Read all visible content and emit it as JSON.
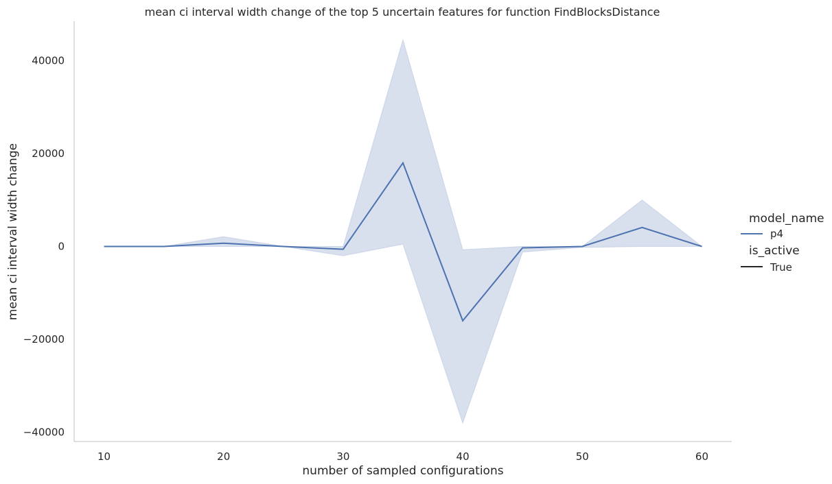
{
  "chart_data": {
    "type": "line",
    "title": "mean ci interval width change of the top 5 uncertain features for function FindBlocksDistance",
    "xlabel": "number of sampled configurations",
    "ylabel": "mean ci interval width change",
    "x": [
      10,
      15,
      20,
      25,
      30,
      35,
      40,
      45,
      50,
      55,
      60
    ],
    "xticks": [
      10,
      20,
      30,
      40,
      50,
      60
    ],
    "xtick_labels": [
      "10",
      "20",
      "30",
      "40",
      "50",
      "60"
    ],
    "yticks": [
      -40000,
      -20000,
      0,
      20000,
      40000
    ],
    "ytick_labels": [
      "−40000",
      "−20000",
      "0",
      "20000",
      "40000"
    ],
    "xlim": [
      7.5,
      62.5
    ],
    "ylim": [
      -42000,
      48500
    ],
    "grid": false,
    "legend_placement": "right",
    "series": [
      {
        "name": "p4",
        "color": "#4c72b0",
        "values": [
          0,
          0,
          700,
          0,
          -600,
          18000,
          -16000,
          -300,
          0,
          4100,
          0
        ],
        "ci_lower": [
          0,
          0,
          0,
          0,
          -2000,
          500,
          -38000,
          -1200,
          -200,
          0,
          0
        ],
        "ci_upper": [
          0,
          0,
          2100,
          0,
          0,
          44500,
          -700,
          0,
          0,
          10000,
          0
        ],
        "ci_color": "#b8c4df"
      }
    ],
    "legend": {
      "hue_title": "model_name",
      "hue_entries": [
        {
          "label": "p4",
          "color": "#4c72b0"
        }
      ],
      "style_title": "is_active",
      "style_entries": [
        {
          "label": "True",
          "color": "#262626"
        }
      ]
    }
  }
}
